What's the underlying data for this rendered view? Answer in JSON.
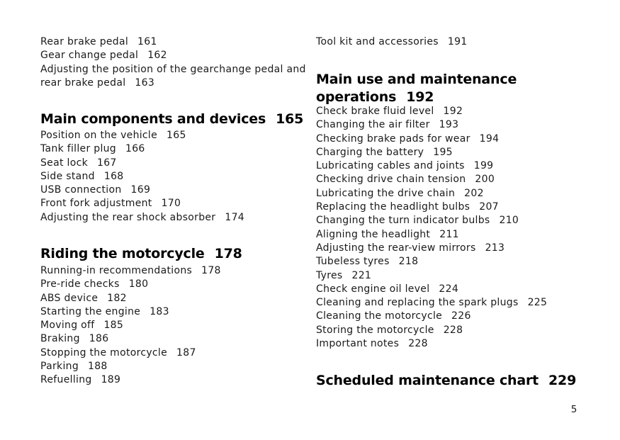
{
  "page": {
    "page_number": "5",
    "background_color": "#ffffff",
    "text_color": "#1a1a1a"
  },
  "left_column": {
    "intro_items": [
      {
        "label": "Rear brake pedal",
        "page": "161"
      },
      {
        "label": "Gear change pedal",
        "page": "162"
      },
      {
        "label": "Adjusting the position of the gearchange pedal and rear brake pedal",
        "page": "163"
      }
    ],
    "sections": [
      {
        "title": "Main components and devices",
        "page": "165",
        "items": [
          {
            "label": "Position on the vehicle",
            "page": "165"
          },
          {
            "label": "Tank filler plug",
            "page": "166"
          },
          {
            "label": "Seat lock",
            "page": "167"
          },
          {
            "label": "Side stand",
            "page": "168"
          },
          {
            "label": "USB connection",
            "page": "169"
          },
          {
            "label": "Front fork adjustment",
            "page": "170"
          },
          {
            "label": "Adjusting the rear shock absorber",
            "page": "174"
          }
        ]
      },
      {
        "title": "Riding the motorcycle",
        "page": "178",
        "items": [
          {
            "label": "Running-in recommendations",
            "page": "178"
          },
          {
            "label": "Pre-ride checks",
            "page": "180"
          },
          {
            "label": "ABS device",
            "page": "182"
          },
          {
            "label": "Starting the engine",
            "page": "183"
          },
          {
            "label": "Moving off",
            "page": "185"
          },
          {
            "label": "Braking",
            "page": "186"
          },
          {
            "label": "Stopping the motorcycle",
            "page": "187"
          },
          {
            "label": "Parking",
            "page": "188"
          },
          {
            "label": "Refuelling",
            "page": "189"
          }
        ]
      }
    ]
  },
  "right_column": {
    "intro_items": [
      {
        "label": "Tool kit and accessories",
        "page": "191"
      }
    ],
    "sections": [
      {
        "title": "Main use and maintenance operations",
        "page": "192",
        "items": [
          {
            "label": "Check brake fluid level",
            "page": "192"
          },
          {
            "label": "Changing the air filter",
            "page": "193"
          },
          {
            "label": "Checking brake pads for wear",
            "page": "194"
          },
          {
            "label": "Charging the battery",
            "page": "195"
          },
          {
            "label": "Lubricating cables and joints",
            "page": "199"
          },
          {
            "label": "Checking drive chain tension",
            "page": "200"
          },
          {
            "label": "Lubricating the drive chain",
            "page": "202"
          },
          {
            "label": "Replacing the headlight bulbs",
            "page": "207"
          },
          {
            "label": "Changing the turn indicator bulbs",
            "page": "210"
          },
          {
            "label": "Aligning the headlight",
            "page": "211"
          },
          {
            "label": "Adjusting the rear-view mirrors",
            "page": "213"
          },
          {
            "label": "Tubeless tyres",
            "page": "218"
          },
          {
            "label": "Tyres",
            "page": "221"
          },
          {
            "label": "Check engine oil level",
            "page": "224"
          },
          {
            "label": "Cleaning and replacing the spark plugs",
            "page": "225"
          },
          {
            "label": "Cleaning the motorcycle",
            "page": "226"
          },
          {
            "label": "Storing the motorcycle",
            "page": "228"
          },
          {
            "label": "Important notes",
            "page": "228"
          }
        ]
      },
      {
        "title": "Scheduled maintenance chart",
        "page": "229",
        "items": []
      }
    ]
  }
}
